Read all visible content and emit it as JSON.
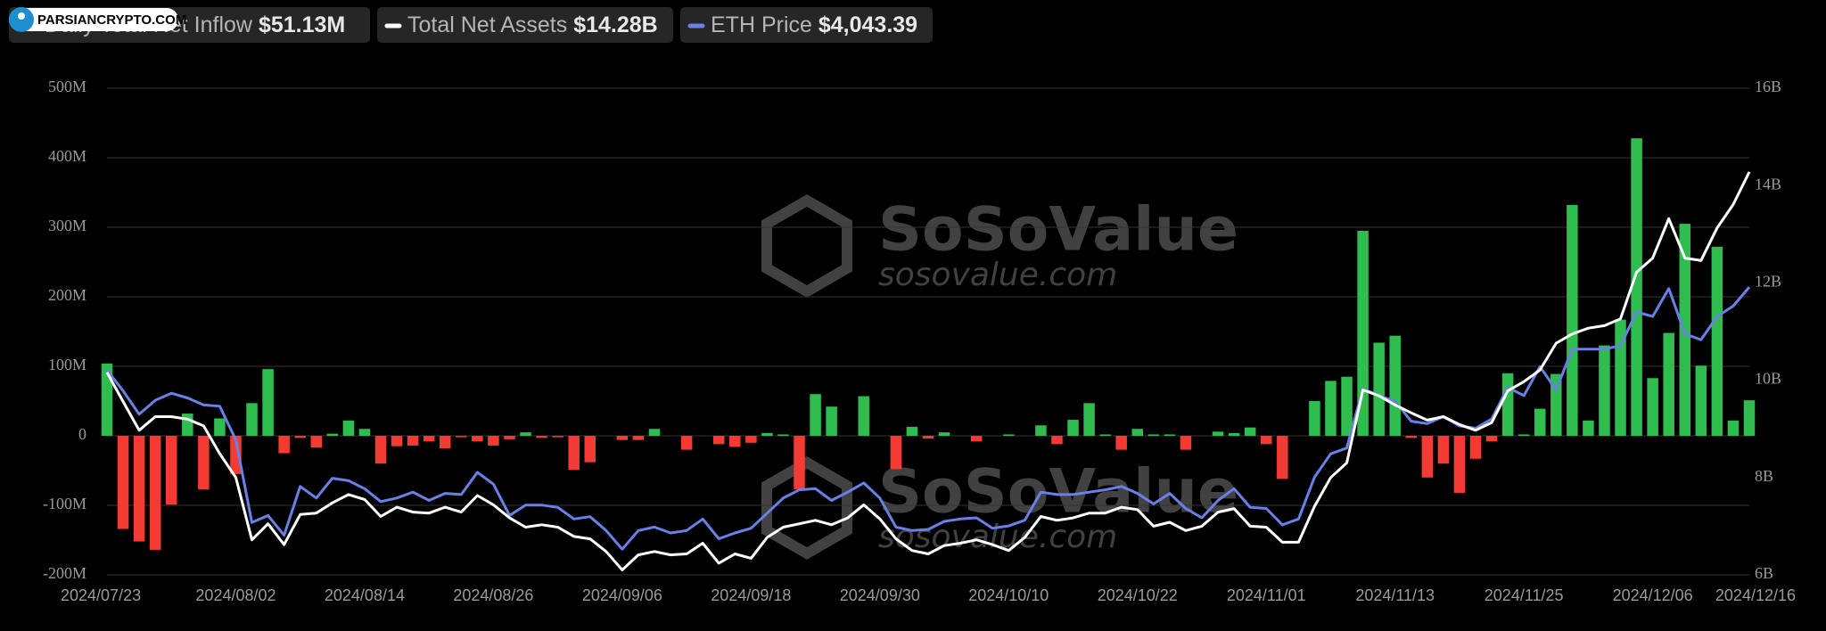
{
  "chart_data": {
    "type": "bar",
    "categories": [
      "2024/07/23",
      null,
      null,
      null,
      null,
      null,
      null,
      null,
      "2024/08/02",
      null,
      null,
      null,
      null,
      null,
      null,
      null,
      "2024/08/14",
      null,
      null,
      null,
      null,
      null,
      null,
      null,
      "2024/08/26",
      null,
      null,
      null,
      null,
      null,
      null,
      null,
      "2024/09/06",
      null,
      null,
      null,
      null,
      null,
      null,
      null,
      "2024/09/18",
      null,
      null,
      null,
      null,
      null,
      null,
      null,
      "2024/09/30",
      null,
      null,
      null,
      null,
      null,
      null,
      null,
      "2024/10/10",
      null,
      null,
      null,
      null,
      null,
      null,
      null,
      "2024/10/22",
      null,
      null,
      null,
      null,
      null,
      null,
      null,
      "2024/11/01",
      null,
      null,
      null,
      null,
      null,
      null,
      null,
      "2024/11/13",
      null,
      null,
      null,
      null,
      null,
      null,
      null,
      "2024/11/25",
      null,
      null,
      null,
      null,
      null,
      null,
      null,
      "2024/12/06",
      null,
      null,
      null,
      null,
      null,
      "2024/12/16"
    ],
    "series": [
      {
        "name": "Daily Total Net Inflow",
        "value_label": "$51.13M",
        "type": "bar",
        "color": "#2ebd4e",
        "negative_color": "#f23b32",
        "values": [
          104,
          -134,
          -152,
          -164,
          -99,
          32,
          -77,
          25,
          -55,
          47,
          96,
          -25,
          -3,
          -17,
          3,
          22,
          10,
          -40,
          -15,
          -14,
          -8,
          -18,
          -2,
          -8,
          -14,
          -5,
          5,
          -3,
          -2,
          -49,
          -38,
          0,
          -6,
          -6,
          10,
          0,
          -20,
          0,
          -12,
          -16,
          -10,
          4,
          2,
          -77,
          60,
          42,
          0,
          57,
          0,
          -48,
          13,
          -4,
          5,
          0,
          -8,
          0,
          2,
          0,
          15,
          -12,
          23,
          47,
          2,
          -20,
          10,
          2,
          2,
          -20,
          0,
          6,
          4,
          12,
          -12,
          -62,
          0,
          50,
          79,
          85,
          295,
          134,
          144,
          -3,
          -60,
          -40,
          -82,
          -33,
          -8,
          90,
          2,
          39,
          89,
          332,
          22,
          130,
          167,
          428,
          83,
          148,
          305,
          101,
          272,
          22,
          51.13
        ]
      },
      {
        "name": "Total Net Assets",
        "value_label": "$14.28B",
        "type": "line",
        "axis": "y2",
        "color": "#ffffff",
        "values": [
          10.16,
          9.56,
          8.97,
          9.25,
          9.25,
          9.2,
          9.06,
          8.49,
          8.0,
          6.72,
          7.05,
          6.62,
          7.24,
          7.27,
          7.48,
          7.65,
          7.55,
          7.2,
          7.39,
          7.29,
          7.27,
          7.39,
          7.29,
          7.63,
          7.44,
          7.17,
          6.98,
          7.03,
          6.98,
          6.79,
          6.74,
          6.48,
          6.1,
          6.41,
          6.48,
          6.41,
          6.43,
          6.65,
          6.24,
          6.43,
          6.34,
          6.77,
          6.98,
          7.05,
          7.12,
          7.03,
          7.17,
          7.44,
          7.15,
          6.74,
          6.5,
          6.43,
          6.6,
          6.65,
          6.72,
          6.62,
          6.5,
          6.77,
          7.2,
          7.12,
          7.17,
          7.27,
          7.27,
          7.39,
          7.34,
          7.0,
          7.08,
          6.91,
          7.0,
          7.29,
          7.36,
          7.0,
          6.98,
          6.67,
          6.67,
          7.41,
          8.0,
          8.3,
          9.8,
          9.68,
          9.49,
          9.33,
          9.18,
          9.25,
          9.09,
          8.97,
          9.13,
          9.78,
          9.97,
          10.21,
          10.76,
          10.95,
          11.07,
          11.12,
          11.26,
          12.22,
          12.51,
          13.32,
          12.51,
          12.46,
          13.13,
          13.61,
          14.28
        ]
      },
      {
        "name": "ETH Price",
        "value_label": "$4,043.39",
        "type": "line",
        "axis": "y3",
        "color": "#6b80e6",
        "values": [
          3477,
          3335,
          3176,
          3271,
          3319,
          3287,
          3239,
          3231,
          3001,
          2437,
          2485,
          2350,
          2683,
          2604,
          2739,
          2723,
          2668,
          2580,
          2604,
          2644,
          2588,
          2636,
          2628,
          2779,
          2699,
          2485,
          2556,
          2556,
          2540,
          2461,
          2477,
          2382,
          2255,
          2382,
          2406,
          2366,
          2382,
          2461,
          2326,
          2366,
          2398,
          2501,
          2604,
          2660,
          2668,
          2588,
          2644,
          2707,
          2604,
          2406,
          2382,
          2390,
          2445,
          2461,
          2469,
          2398,
          2414,
          2453,
          2644,
          2628,
          2628,
          2644,
          2660,
          2683,
          2636,
          2564,
          2636,
          2533,
          2469,
          2588,
          2668,
          2540,
          2533,
          2421,
          2461,
          2747,
          2906,
          2945,
          3350,
          3303,
          3263,
          3128,
          3112,
          3160,
          3096,
          3080,
          3144,
          3358,
          3303,
          3501,
          3342,
          3620,
          3620,
          3620,
          3644,
          3874,
          3843,
          4033,
          3724,
          3684,
          3843,
          3914,
          4043.39
        ]
      }
    ],
    "ylim": [
      -200,
      500
    ],
    "yticks": [
      {
        "value": -200,
        "label": "-200M"
      },
      {
        "value": -100,
        "label": "-100M"
      },
      0,
      {
        "value": 100,
        "label": "100M"
      },
      {
        "value": 200,
        "label": "200M"
      },
      {
        "value": 300,
        "label": "300M"
      },
      {
        "value": 400,
        "label": "400M"
      },
      {
        "value": 500,
        "label": "500M"
      }
    ],
    "y2lim": [
      6,
      16
    ],
    "y2ticks": [
      {
        "value": 6,
        "label": "6B"
      },
      {
        "value": 8,
        "label": "8B"
      },
      {
        "value": 10,
        "label": "10B"
      },
      {
        "value": 12,
        "label": "12B"
      },
      {
        "value": 14,
        "label": "14B"
      },
      {
        "value": 16,
        "label": "16B"
      }
    ],
    "y3lim": [
      2080,
      5400
    ],
    "grid": true,
    "watermarks": [
      "SoSoValue",
      "sosovalue.com"
    ],
    "overlay": "PARSIANCRYPTO.COM"
  }
}
